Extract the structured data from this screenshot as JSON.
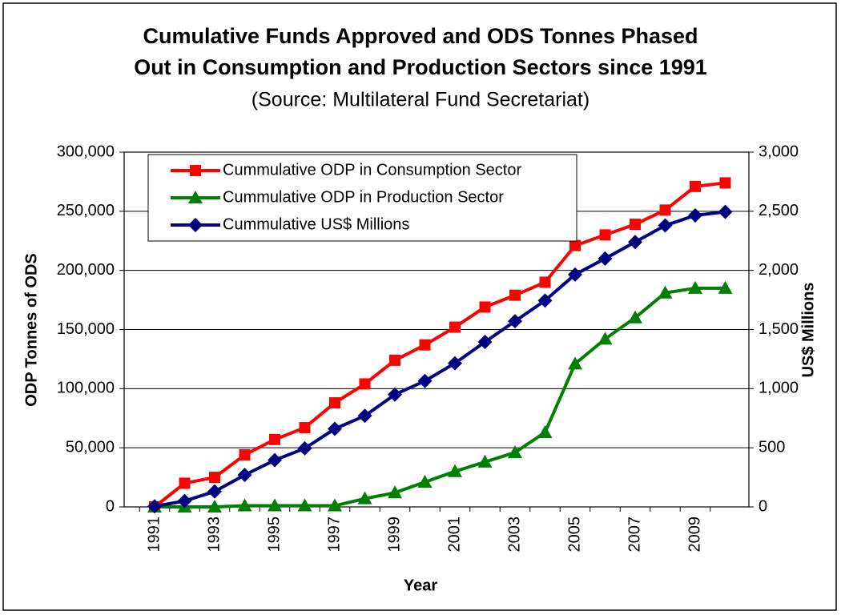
{
  "chart_data": {
    "type": "line",
    "title": [
      "Cumulative Funds Approved and ODS Tonnes Phased",
      "Out in Consumption and Production Sectors since 1991"
    ],
    "subtitle": "(Source: Multilateral Fund Secretariat)",
    "xlabel": "Year",
    "ylabel": "ODP Tonnes of ODS",
    "y2label": "US$ Millions",
    "categories": [
      "1991",
      null,
      "1993",
      null,
      "1995",
      null,
      "1997",
      null,
      "1999",
      null,
      "2001",
      null,
      "2003",
      null,
      "2005",
      null,
      "2007",
      null,
      "2009",
      null
    ],
    "series": [
      {
        "name": "Cummulative ODP in Consumption Sector",
        "color": "#ff0000",
        "marker": "square",
        "values": [
          0,
          20000,
          25000,
          44000,
          57000,
          67000,
          88000,
          104000,
          124000,
          137000,
          152000,
          169000,
          179000,
          190000,
          221000,
          230000,
          239000,
          251000,
          271000,
          274000
        ]
      },
      {
        "name": "Cummulative ODP in Production Sector",
        "color": "#008000",
        "marker": "triangle",
        "values": [
          0,
          0,
          0,
          1000,
          1000,
          1000,
          1000,
          7000,
          12000,
          21000,
          30000,
          38000,
          46000,
          63000,
          121000,
          142000,
          160000,
          181000,
          185000,
          185000
        ]
      },
      {
        "name": "Cummulative US$ Millions",
        "color": "#000080",
        "marker": "diamond",
        "axis": "y2",
        "values": [
          5,
          50,
          130,
          270,
          395,
          495,
          660,
          770,
          950,
          1065,
          1215,
          1395,
          1570,
          1745,
          1965,
          2100,
          2240,
          2380,
          2465,
          2495
        ]
      }
    ],
    "ylim": [
      0,
      300000
    ],
    "yticks": [
      0,
      {
        "value": 50000,
        "label": "50,000"
      },
      {
        "value": 100000,
        "label": "100,000"
      },
      {
        "value": 150000,
        "label": "150,000"
      },
      {
        "value": 200000,
        "label": "200,000"
      },
      {
        "value": 250000,
        "label": "250,000"
      },
      {
        "value": 300000,
        "label": "300,000"
      }
    ],
    "y2lim": [
      0,
      3000
    ],
    "y2ticks": [
      0,
      500,
      {
        "value": 1000,
        "label": "1,000"
      },
      {
        "value": 1500,
        "label": "1,500"
      },
      {
        "value": 2000,
        "label": "2,000"
      },
      {
        "value": 2500,
        "label": "2,500"
      },
      {
        "value": 3000,
        "label": "3,000"
      }
    ],
    "grid": true,
    "legend": "upper-left"
  }
}
